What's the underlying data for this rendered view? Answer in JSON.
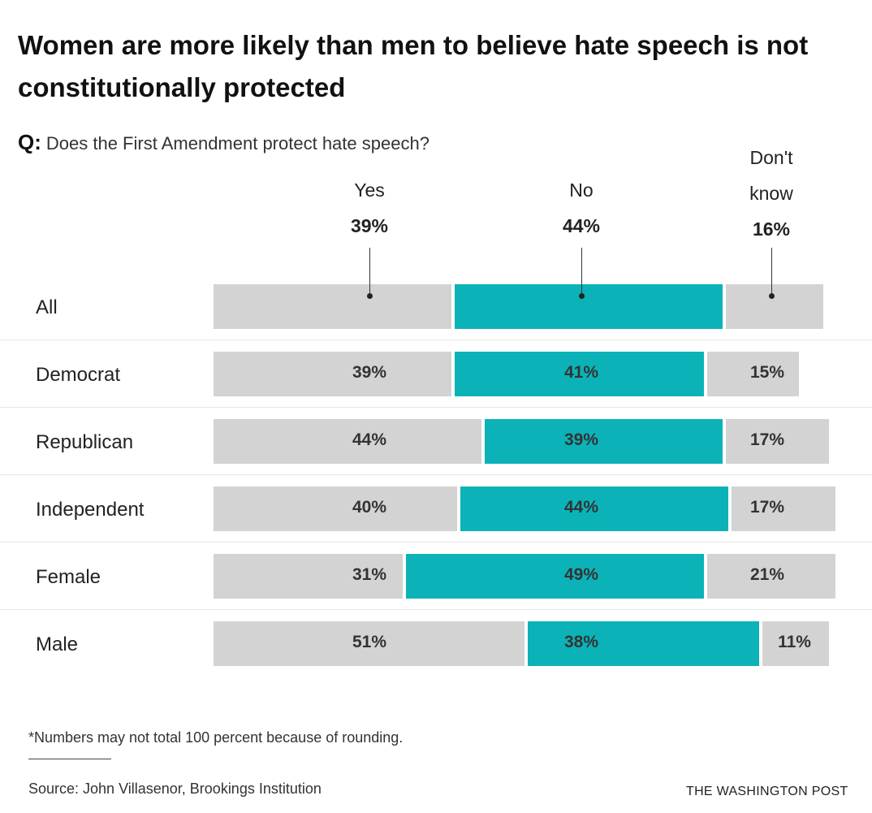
{
  "chart_data": {
    "type": "bar",
    "orientation": "horizontal-stacked",
    "title": "Women are more likely than men to believe hate speech is not constitutionally protected",
    "question_prefix": "Q:",
    "question": "Does the First Amendment protect hate speech?",
    "series_labels": [
      {
        "line1": "",
        "line2": "Yes"
      },
      {
        "line1": "",
        "line2": "No"
      },
      {
        "line1": "Don't",
        "line2": "know"
      }
    ],
    "colors": {
      "Yes": "#d3d3d3",
      "No": "#0bb3b8",
      "Don't know": "#d3d3d3"
    },
    "categories": [
      "All",
      "Democrat",
      "Republican",
      "Independent",
      "Female",
      "Male"
    ],
    "series": [
      {
        "name": "Yes",
        "values": [
          39,
          39,
          44,
          40,
          31,
          51
        ]
      },
      {
        "name": "No",
        "values": [
          44,
          41,
          39,
          44,
          49,
          38
        ]
      },
      {
        "name": "Don't know",
        "values": [
          16,
          15,
          17,
          17,
          21,
          11
        ]
      }
    ],
    "header_values": [
      "39%",
      "44%",
      "16%"
    ],
    "labels": [
      [
        "39%",
        "41%",
        "15%"
      ],
      [
        "44%",
        "39%",
        "17%"
      ],
      [
        "40%",
        "44%",
        "17%"
      ],
      [
        "31%",
        "49%",
        "21%"
      ],
      [
        "51%",
        "38%",
        "11%"
      ]
    ],
    "xlim": [
      0,
      100
    ]
  },
  "footer": {
    "note": "*Numbers may not total 100 percent because of rounding.",
    "source": "Source: John Villasenor, Brookings Institution",
    "logo": "THE WASHINGTON POST"
  }
}
